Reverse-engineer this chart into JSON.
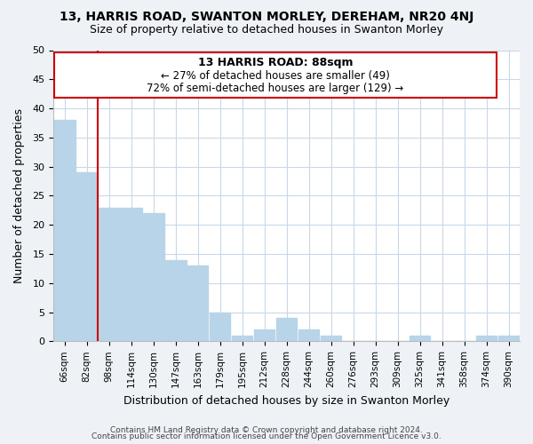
{
  "title": "13, HARRIS ROAD, SWANTON MORLEY, DEREHAM, NR20 4NJ",
  "subtitle": "Size of property relative to detached houses in Swanton Morley",
  "xlabel": "Distribution of detached houses by size in Swanton Morley",
  "ylabel": "Number of detached properties",
  "bar_labels": [
    "66sqm",
    "82sqm",
    "98sqm",
    "114sqm",
    "130sqm",
    "147sqm",
    "163sqm",
    "179sqm",
    "195sqm",
    "212sqm",
    "228sqm",
    "244sqm",
    "260sqm",
    "276sqm",
    "293sqm",
    "309sqm",
    "325sqm",
    "341sqm",
    "358sqm",
    "374sqm",
    "390sqm"
  ],
  "bar_values": [
    38,
    29,
    23,
    23,
    22,
    14,
    13,
    5,
    1,
    2,
    4,
    2,
    1,
    0,
    0,
    0,
    1,
    0,
    0,
    1,
    1
  ],
  "bar_color": "#b8d4e8",
  "annotation_title": "13 HARRIS ROAD: 88sqm",
  "annotation_line1": "← 27% of detached houses are smaller (49)",
  "annotation_line2": "72% of semi-detached houses are larger (129) →",
  "red_line_color": "#cc0000",
  "annotation_box_edge": "#cc0000",
  "ylim": [
    0,
    50
  ],
  "yticks": [
    0,
    5,
    10,
    15,
    20,
    25,
    30,
    35,
    40,
    45,
    50
  ],
  "footer1": "Contains HM Land Registry data © Crown copyright and database right 2024.",
  "footer2": "Contains public sector information licensed under the Open Government Licence v3.0.",
  "bg_color": "#eef2f7",
  "plot_bg_color": "#ffffff"
}
